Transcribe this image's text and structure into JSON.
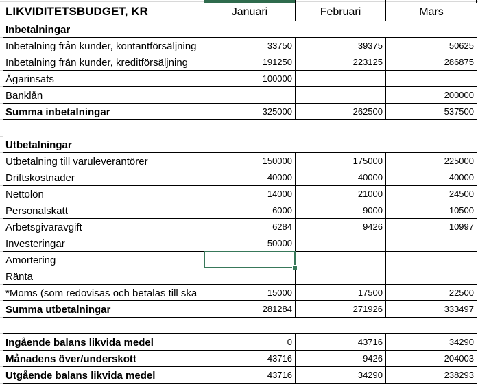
{
  "sheet": {
    "title": "LIKVIDITETSBUDGET, KR",
    "columns": [
      "Januari",
      "Februari",
      "Mars"
    ],
    "rows": [
      {
        "label": "Inbetalningar",
        "bold": true,
        "bordered": false,
        "values": [
          "",
          "",
          ""
        ]
      },
      {
        "label": "Inbetalning från kunder, kontantförsäljning",
        "bold": false,
        "bordered": true,
        "values": [
          "33750",
          "39375",
          "50625"
        ]
      },
      {
        "label": "Inbetalning från kunder, kreditförsäljning",
        "bold": false,
        "bordered": true,
        "values": [
          "191250",
          "223125",
          "286875"
        ]
      },
      {
        "label": "Ägarinsats",
        "bold": false,
        "bordered": true,
        "values": [
          "100000",
          "",
          ""
        ]
      },
      {
        "label": "Banklån",
        "bold": false,
        "bordered": true,
        "values": [
          "",
          "",
          "200000"
        ]
      },
      {
        "label": "Summa inbetalningar",
        "bold": true,
        "bordered": true,
        "values": [
          "325000",
          "262500",
          "537500"
        ]
      },
      {
        "label": "",
        "bold": false,
        "bordered": false,
        "values": [
          "",
          "",
          ""
        ]
      },
      {
        "label": "Utbetalningar",
        "bold": true,
        "bordered": false,
        "values": [
          "",
          "",
          ""
        ]
      },
      {
        "label": "Utbetalning till varuleverantörer",
        "bold": false,
        "bordered": true,
        "values": [
          "150000",
          "175000",
          "225000"
        ]
      },
      {
        "label": "Driftskostnader",
        "bold": false,
        "bordered": true,
        "values": [
          "40000",
          "40000",
          "40000"
        ]
      },
      {
        "label": "Nettolön",
        "bold": false,
        "bordered": true,
        "values": [
          "14000",
          "21000",
          "24500"
        ]
      },
      {
        "label": "Personalskatt",
        "bold": false,
        "bordered": true,
        "values": [
          "6000",
          "9000",
          "10500"
        ]
      },
      {
        "label": "Arbetsgivaravgift",
        "bold": false,
        "bordered": true,
        "values": [
          "6284",
          "9426",
          "10997"
        ]
      },
      {
        "label": "Investeringar",
        "bold": false,
        "bordered": true,
        "values": [
          "50000",
          "",
          ""
        ]
      },
      {
        "label": "Amortering",
        "bold": false,
        "bordered": true,
        "values": [
          "",
          "",
          ""
        ]
      },
      {
        "label": "Ränta",
        "bold": false,
        "bordered": true,
        "values": [
          "",
          "",
          ""
        ]
      },
      {
        "label": "*Moms (som redovisas och betalas till ska",
        "bold": false,
        "bordered": true,
        "values": [
          "15000",
          "17500",
          "22500"
        ],
        "note": "*"
      },
      {
        "label": "Summa utbetalningar",
        "bold": true,
        "bordered": true,
        "values": [
          "281284",
          "271926",
          "333497"
        ]
      },
      {
        "label": "",
        "bold": false,
        "bordered": false,
        "values": [
          "",
          "",
          ""
        ]
      },
      {
        "label": "Ingående balans likvida medel",
        "bold": true,
        "bordered": true,
        "values": [
          "0",
          "43716",
          "34290"
        ]
      },
      {
        "label": "Månadens över/underskott",
        "bold": true,
        "bordered": true,
        "values": [
          "43716",
          "-9426",
          "204003"
        ]
      },
      {
        "label": "Utgående balans likvida medel",
        "bold": true,
        "bordered": true,
        "values": [
          "43716",
          "34290",
          "238293"
        ]
      }
    ]
  },
  "selection": {
    "row_index": 14,
    "col_index": 0,
    "row_label": "Amortering",
    "column": "Januari"
  },
  "colors": {
    "selection_green": "#38785A",
    "header_bar_green": "#2F6B4D",
    "grid_gray": "#D8D8D8",
    "border_black": "#000000",
    "note_red": "#C00000",
    "background": "#FFFFFF"
  }
}
